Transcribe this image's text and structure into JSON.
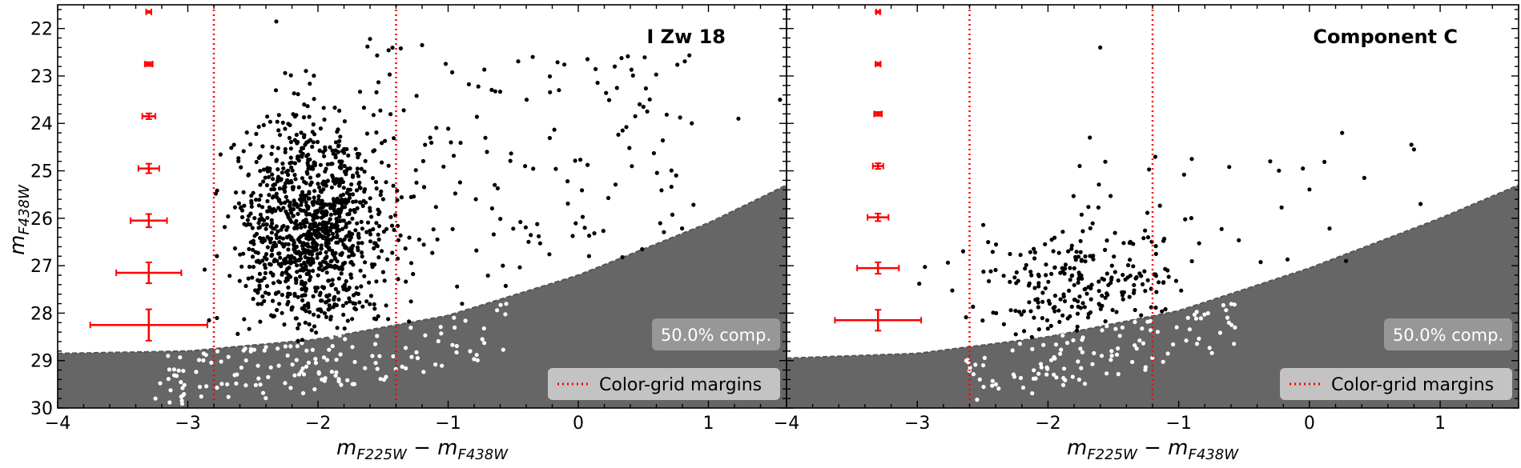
{
  "chart_data": [
    {
      "type": "scatter",
      "title": "I Zw 18",
      "xlabel": "m_F225W − m_F438W",
      "ylabel": "m_F438W",
      "xlim": [
        -4,
        1.6
      ],
      "ylim": [
        30,
        21.5
      ],
      "y_inverted": true,
      "x_ticks": [
        -4,
        -3,
        -2,
        -1,
        0,
        1
      ],
      "y_ticks": [
        22,
        23,
        24,
        25,
        26,
        27,
        28,
        29,
        30
      ],
      "color_grid_margins": [
        -2.8,
        -1.4
      ],
      "completeness_label": "50.0% comp.",
      "legend": {
        "label": "Color-grid margins",
        "placement": "lower-right"
      },
      "completeness_curve": {
        "x": [
          -4,
          -3.0,
          -2.0,
          -1.0,
          0.0,
          1.0,
          1.6
        ],
        "y": [
          28.85,
          28.8,
          28.55,
          28.05,
          27.2,
          26.1,
          25.3
        ]
      },
      "error_bars": {
        "x": -3.3,
        "y": [
          21.65,
          22.75,
          23.85,
          24.95,
          26.05,
          27.15,
          28.25
        ],
        "xerr": [
          0.02,
          0.03,
          0.05,
          0.08,
          0.14,
          0.25,
          0.45
        ],
        "yerr": [
          0.02,
          0.04,
          0.06,
          0.1,
          0.14,
          0.22,
          0.33
        ]
      },
      "cluster": {
        "n": 1150,
        "cx": -2.05,
        "sx": 0.28,
        "cy": 26.2,
        "sy": 1.15,
        "seed": 7
      },
      "sparse": {
        "n": 170,
        "xmin": -1.6,
        "xmax": 0.9,
        "ymin": 22.4,
        "ymax": 28.6,
        "seed": 11
      },
      "bright_outliers": {
        "x": [
          -2.32,
          -1.6,
          -1.62,
          -1.2,
          -0.35,
          0.28,
          0.5,
          0.53,
          1.23,
          1.55,
          0.34,
          0.05
        ],
        "y": [
          21.85,
          22.22,
          22.38,
          22.35,
          22.6,
          22.8,
          23.65,
          23.75,
          23.9,
          23.5,
          24.15,
          26.2
        ],
        "color": "#000000"
      },
      "faint_stars": {
        "n": 130,
        "xmin": -3.25,
        "xmax": -0.55,
        "seed": 23,
        "color": "#ffffff"
      },
      "colors": {
        "points": "#000000",
        "faint_points": "#ffffff",
        "margin_lines": "#ff0000",
        "error_bars": "#ff0000",
        "incomplete_region": "#666666"
      }
    },
    {
      "type": "scatter",
      "title": "Component C",
      "xlabel": "m_F225W − m_F438W",
      "ylabel": "m_F438W",
      "xlim": [
        -4,
        1.6
      ],
      "ylim": [
        30,
        21.5
      ],
      "y_inverted": true,
      "x_ticks": [
        -4,
        -3,
        -2,
        -1,
        0,
        1
      ],
      "y_ticks": [
        22,
        23,
        24,
        25,
        26,
        27,
        28,
        29,
        30
      ],
      "color_grid_margins": [
        -2.6,
        -1.2
      ],
      "completeness_label": "50.0% comp.",
      "legend": {
        "label": "Color-grid margins",
        "placement": "lower-right"
      },
      "completeness_curve": {
        "x": [
          -4,
          -3.0,
          -2.0,
          -1.0,
          0.0,
          1.0,
          1.6
        ],
        "y": [
          28.95,
          28.85,
          28.5,
          27.95,
          27.05,
          26.0,
          25.3
        ]
      },
      "error_bars": {
        "x": -3.3,
        "y": [
          21.65,
          22.75,
          23.8,
          24.9,
          25.98,
          27.05,
          28.15
        ],
        "xerr": [
          0.015,
          0.02,
          0.03,
          0.04,
          0.08,
          0.16,
          0.33
        ],
        "yerr": [
          0.02,
          0.03,
          0.04,
          0.06,
          0.08,
          0.12,
          0.22
        ]
      },
      "cluster": {
        "n": 230,
        "cx": -1.78,
        "sx": 0.35,
        "cy": 27.45,
        "sy": 0.6,
        "seed": 31
      },
      "sparse": {
        "n": 55,
        "xmin": -1.9,
        "xmax": 0.3,
        "ymin": 24.7,
        "ymax": 27.6,
        "seed": 37
      },
      "bright_outliers": {
        "x": [
          -1.6,
          -1.68,
          -0.3,
          -0.9,
          0.25,
          0.78,
          0.8,
          0.42,
          0.85,
          -0.05,
          0.28
        ],
        "y": [
          22.4,
          24.3,
          24.8,
          24.75,
          24.2,
          24.45,
          24.55,
          25.15,
          25.7,
          24.95,
          26.9
        ],
        "color": "#000000"
      },
      "faint_stars": {
        "n": 95,
        "xmin": -2.65,
        "xmax": -0.55,
        "seed": 41,
        "color": "#ffffff"
      },
      "colors": {
        "points": "#000000",
        "faint_points": "#ffffff",
        "margin_lines": "#ff0000",
        "error_bars": "#ff0000",
        "incomplete_region": "#666666"
      }
    }
  ]
}
